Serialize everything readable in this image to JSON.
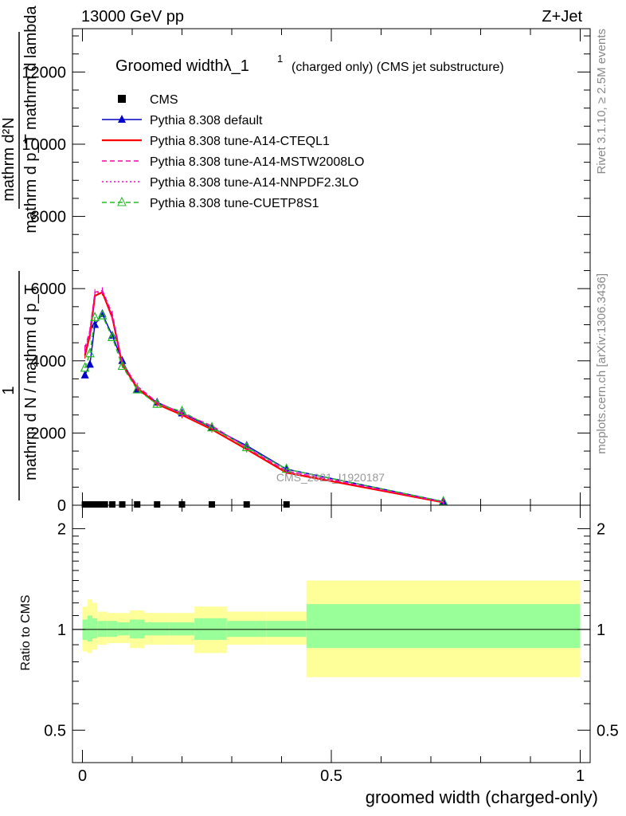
{
  "header": {
    "left": "13000 GeV pp",
    "right": "Z+Jet"
  },
  "side_labels": {
    "rivet": "Rivet 3.1.10, ≥ 2.5M events",
    "mcplots": "mcplots.cern.ch [arXiv:1306.3436]"
  },
  "watermark": "CMS_2021_I1920187",
  "chart_data": [
    {
      "type": "line",
      "title": "Groomed widthλ_1",
      "title_sup": "1",
      "subtitle": "(charged only) (CMS jet substructure)",
      "ylabel_numerator": "mathrm d²N",
      "ylabel_numerator_sub": "mathrm d p_T mathrm d lambda",
      "ylabel_denominator": "mathrm d N / mathrm d p_T",
      "ylabel_one": "1",
      "xlim": [
        -0.02,
        1.02
      ],
      "ylim": [
        0,
        13200
      ],
      "yticks": [
        0,
        2000,
        4000,
        6000,
        8000,
        10000,
        12000
      ],
      "ytick_labels": [
        "0",
        "2000",
        "4000",
        "6000",
        "8000",
        "10000",
        "12000"
      ],
      "legend_position": "top-left",
      "series": [
        {
          "name": "CMS",
          "color": "#000000",
          "style": "markers",
          "marker": "square",
          "x": [
            0.005,
            0.015,
            0.025,
            0.035,
            0.045,
            0.06,
            0.08,
            0.11,
            0.15,
            0.2,
            0.26,
            0.33,
            0.41
          ],
          "values": [
            0,
            0,
            0,
            0,
            0,
            0,
            0,
            0,
            0,
            0,
            0,
            0,
            0
          ]
        },
        {
          "name": "Pythia 8.308 default",
          "color": "#0000cc",
          "style": "solid",
          "marker": "triangle-filled",
          "x": [
            0.005,
            0.015,
            0.025,
            0.04,
            0.06,
            0.08,
            0.11,
            0.15,
            0.2,
            0.26,
            0.33,
            0.41,
            0.725
          ],
          "values": [
            3600,
            3900,
            5000,
            5300,
            4700,
            4000,
            3200,
            2850,
            2550,
            2150,
            1650,
            1000,
            100
          ]
        },
        {
          "name": "Pythia 8.308 tune-A14-CTEQL1",
          "color": "#ff0000",
          "style": "solid",
          "marker": "none",
          "x": [
            0.005,
            0.015,
            0.025,
            0.04,
            0.06,
            0.08,
            0.11,
            0.15,
            0.2,
            0.26,
            0.33,
            0.41,
            0.725
          ],
          "values": [
            4150,
            4700,
            5800,
            5900,
            5200,
            3900,
            3250,
            2800,
            2500,
            2100,
            1550,
            900,
            80
          ]
        },
        {
          "name": "Pythia 8.308 tune-A14-MSTW2008LO",
          "color": "#ff00aa",
          "style": "dashed",
          "marker": "none",
          "x": [
            0.005,
            0.015,
            0.025,
            0.04,
            0.06,
            0.08,
            0.11,
            0.15,
            0.2,
            0.26,
            0.33,
            0.41,
            0.725
          ],
          "values": [
            4350,
            4850,
            5900,
            5950,
            5300,
            3950,
            3300,
            2850,
            2550,
            2200,
            1600,
            950,
            90
          ]
        },
        {
          "name": "Pythia 8.308 tune-A14-NNPDF2.3LO",
          "color": "#ff00cc",
          "style": "dotted",
          "marker": "none",
          "x": [
            0.005,
            0.015,
            0.025,
            0.04,
            0.06,
            0.08,
            0.11,
            0.15,
            0.2,
            0.26,
            0.33,
            0.41,
            0.725
          ],
          "values": [
            4300,
            4800,
            5850,
            5950,
            5250,
            3950,
            3300,
            2850,
            2550,
            2200,
            1600,
            950,
            90
          ]
        },
        {
          "name": "Pythia 8.308 tune-CUETP8S1",
          "color": "#22bb22",
          "style": "dashed",
          "marker": "triangle-open",
          "x": [
            0.005,
            0.015,
            0.025,
            0.04,
            0.06,
            0.08,
            0.11,
            0.15,
            0.2,
            0.26,
            0.33,
            0.41,
            0.725
          ],
          "values": [
            3800,
            4200,
            5200,
            5250,
            4650,
            3850,
            3200,
            2800,
            2600,
            2150,
            1600,
            1000,
            100
          ]
        }
      ]
    },
    {
      "type": "area",
      "ylabel": "Ratio to CMS",
      "xlabel": "groomed width (charged-only)",
      "xlim": [
        -0.02,
        1.02
      ],
      "ylim": [
        0.4,
        2.35
      ],
      "log_scale_y": true,
      "yticks": [
        0.5,
        1,
        2
      ],
      "ytick_labels": [
        "0.5",
        "1",
        "2"
      ],
      "xticks": [
        0,
        0.5,
        1
      ],
      "xtick_labels": [
        "0",
        "0.5",
        "1"
      ],
      "reference_line": 1,
      "band_colors": {
        "outer": "#ffff99",
        "inner": "#99ff99"
      },
      "bins": [
        0,
        0.01,
        0.02,
        0.03,
        0.05,
        0.07,
        0.095,
        0.125,
        0.175,
        0.225,
        0.29,
        0.37,
        0.45,
        1.0
      ],
      "inner_band": [
        [
          0.93,
          1.07
        ],
        [
          0.92,
          1.1
        ],
        [
          0.94,
          1.08
        ],
        [
          0.95,
          1.06
        ],
        [
          0.95,
          1.06
        ],
        [
          0.96,
          1.05
        ],
        [
          0.94,
          1.07
        ],
        [
          0.96,
          1.05
        ],
        [
          0.96,
          1.05
        ],
        [
          0.93,
          1.08
        ],
        [
          0.95,
          1.06
        ],
        [
          0.95,
          1.06
        ],
        [
          0.88,
          1.19
        ]
      ],
      "outer_band": [
        [
          0.86,
          1.17
        ],
        [
          0.85,
          1.23
        ],
        [
          0.87,
          1.2
        ],
        [
          0.9,
          1.13
        ],
        [
          0.91,
          1.12
        ],
        [
          0.91,
          1.12
        ],
        [
          0.88,
          1.14
        ],
        [
          0.9,
          1.12
        ],
        [
          0.9,
          1.12
        ],
        [
          0.85,
          1.17
        ],
        [
          0.9,
          1.13
        ],
        [
          0.9,
          1.13
        ],
        [
          0.72,
          1.4
        ]
      ]
    }
  ]
}
